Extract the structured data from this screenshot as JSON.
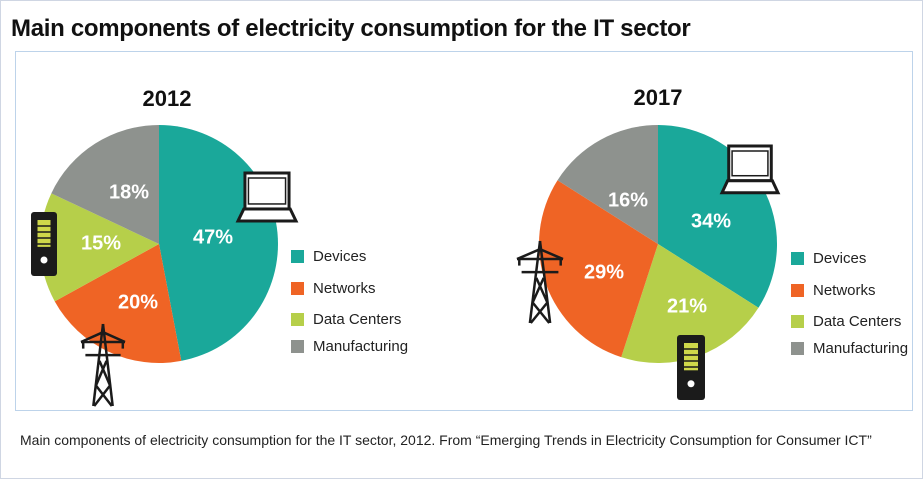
{
  "title": "Main components of electricity consumption for the IT sector",
  "caption": "Main components of electricity consumption for the IT sector, 2012. From “Emerging Trends in Electricity Consumption for Consumer ICT”",
  "colors": {
    "devices": "#1aa89a",
    "networks": "#ef6425",
    "data_centers": "#b6cf4a",
    "manufacturing": "#8e928e",
    "icon": "#1b1b1b"
  },
  "legend": [
    "Devices",
    "Networks",
    "Data Centers",
    "Manufacturing"
  ],
  "icons": [
    "laptop-icon",
    "server-tower-icon",
    "power-pylon-icon"
  ],
  "chart_data": [
    {
      "type": "pie",
      "title": "2012",
      "categories": [
        "Devices",
        "Networks",
        "Data Centers",
        "Manufacturing"
      ],
      "values": [
        47,
        20,
        15,
        18
      ],
      "labels": [
        "47%",
        "20%",
        "15%",
        "18%"
      ]
    },
    {
      "type": "pie",
      "title": "2017",
      "categories": [
        "Devices",
        "Data Centers",
        "Networks",
        "Manufacturing"
      ],
      "values": [
        34,
        21,
        29,
        16
      ],
      "labels": [
        "34%",
        "21%",
        "29%",
        "16%"
      ]
    }
  ]
}
